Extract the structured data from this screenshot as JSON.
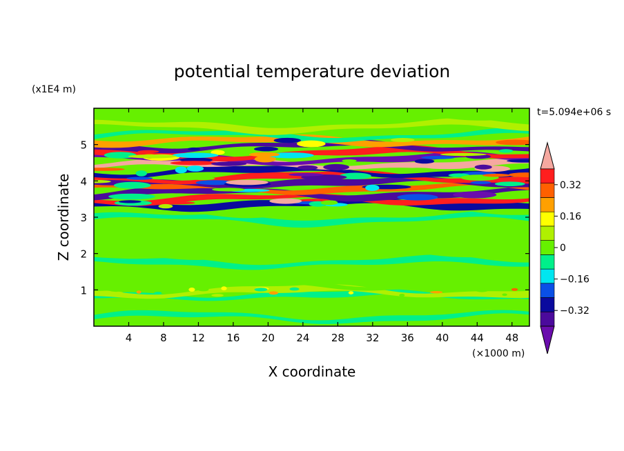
{
  "chart_data": {
    "type": "heatmap",
    "title": "potential temperature deviation",
    "xlabel": "X coordinate",
    "ylabel": "Z coordinate",
    "x_units": "(×1000 m)",
    "y_units": "(x1E4 m)",
    "time_label": "t=5.094e+06 s",
    "xlim": [
      0,
      50
    ],
    "ylim": [
      0,
      6
    ],
    "x_ticks": [
      "4",
      "8",
      "12",
      "16",
      "20",
      "24",
      "28",
      "32",
      "36",
      "40",
      "44",
      "48"
    ],
    "y_ticks": [
      "1",
      "2",
      "3",
      "4",
      "5"
    ],
    "colorbar": {
      "levels": [
        -0.48,
        -0.4,
        -0.32,
        -0.24,
        -0.16,
        -0.08,
        0,
        0.08,
        0.16,
        0.24,
        0.32,
        0.4,
        0.48
      ],
      "tick_labels": [
        "0.32",
        "0.16",
        "0",
        "−0.16",
        "−0.32"
      ],
      "tick_values": [
        0.32,
        0.16,
        0,
        -0.16,
        -0.32
      ],
      "colors": [
        "#6a0dad",
        "#4b0a9c",
        "#0a0a9e",
        "#0a50e6",
        "#00e6f0",
        "#00f08a",
        "#66f000",
        "#b0f000",
        "#ffff00",
        "#ffa000",
        "#ff6000",
        "#ff1e1e",
        "#f5a8a0"
      ]
    },
    "bands": [
      {
        "z": 0.25,
        "value": -0.04
      },
      {
        "z": 0.55,
        "value": 0.02
      },
      {
        "z": 0.85,
        "value": -0.06
      },
      {
        "z": 0.95,
        "value": 0.12
      },
      {
        "z": 1.15,
        "value": -0.03
      },
      {
        "z": 1.45,
        "value": 0.03
      },
      {
        "z": 1.75,
        "value": -0.04
      },
      {
        "z": 2.05,
        "value": 0.03
      },
      {
        "z": 2.35,
        "value": -0.03
      },
      {
        "z": 2.65,
        "value": 0.02
      },
      {
        "z": 2.95,
        "value": -0.04
      },
      {
        "z": 3.2,
        "value": 0.04
      },
      {
        "z": 3.35,
        "value": -0.3
      },
      {
        "z": 3.5,
        "value": 0.42
      },
      {
        "z": 3.65,
        "value": -0.38
      },
      {
        "z": 3.8,
        "value": 0.3
      },
      {
        "z": 3.95,
        "value": -0.42
      },
      {
        "z": 4.1,
        "value": 0.44
      },
      {
        "z": 4.25,
        "value": -0.35
      },
      {
        "z": 4.45,
        "value": 0.45
      },
      {
        "z": 4.6,
        "value": -0.44
      },
      {
        "z": 4.75,
        "value": 0.42
      },
      {
        "z": 4.95,
        "value": -0.4
      },
      {
        "z": 5.1,
        "value": 0.2
      },
      {
        "z": 5.25,
        "value": -0.1
      },
      {
        "z": 5.5,
        "value": 0.05
      },
      {
        "z": 5.8,
        "value": 0.02
      }
    ]
  }
}
